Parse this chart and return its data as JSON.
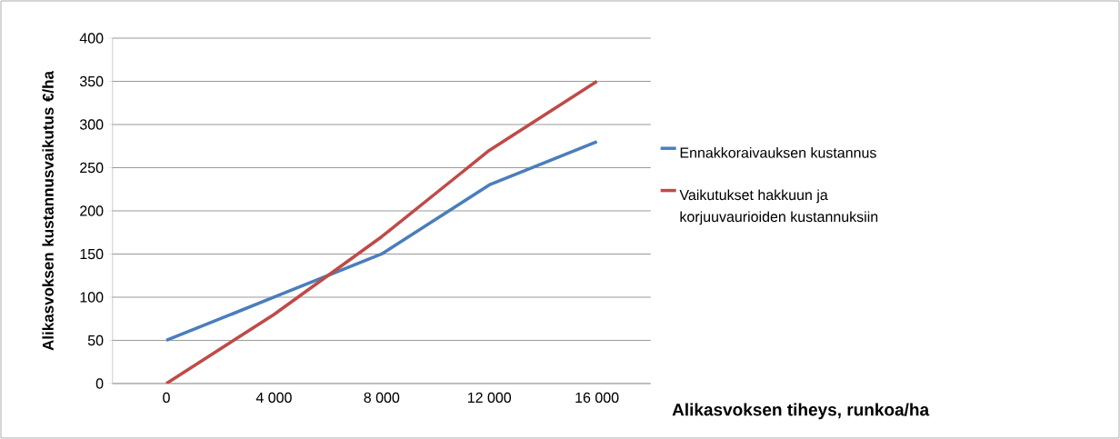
{
  "chart_data": {
    "type": "line",
    "xlabel": "Alikasvoksen tiheys, runkoa/ha",
    "ylabel": "Alikasvoksen kustannusvaikutus €/ha",
    "categories": [
      "0",
      "4 000",
      "8 000",
      "12 000",
      "16 000"
    ],
    "series": [
      {
        "name": "Ennakkoraivauksen kustannus",
        "color": "#4a7ebb",
        "values": [
          50,
          100,
          150,
          230,
          280
        ]
      },
      {
        "name": "Vaikutukset hakkuun ja korjuuvaurioiden kustannuksiin",
        "color": "#be4b48",
        "values": [
          0,
          80,
          170,
          270,
          350
        ]
      }
    ],
    "ylim": [
      0,
      400
    ],
    "yticks": [
      0,
      50,
      100,
      150,
      200,
      250,
      300,
      350,
      400
    ],
    "grid": "y",
    "legend": "right",
    "marker": "none",
    "line_style": "solid"
  }
}
